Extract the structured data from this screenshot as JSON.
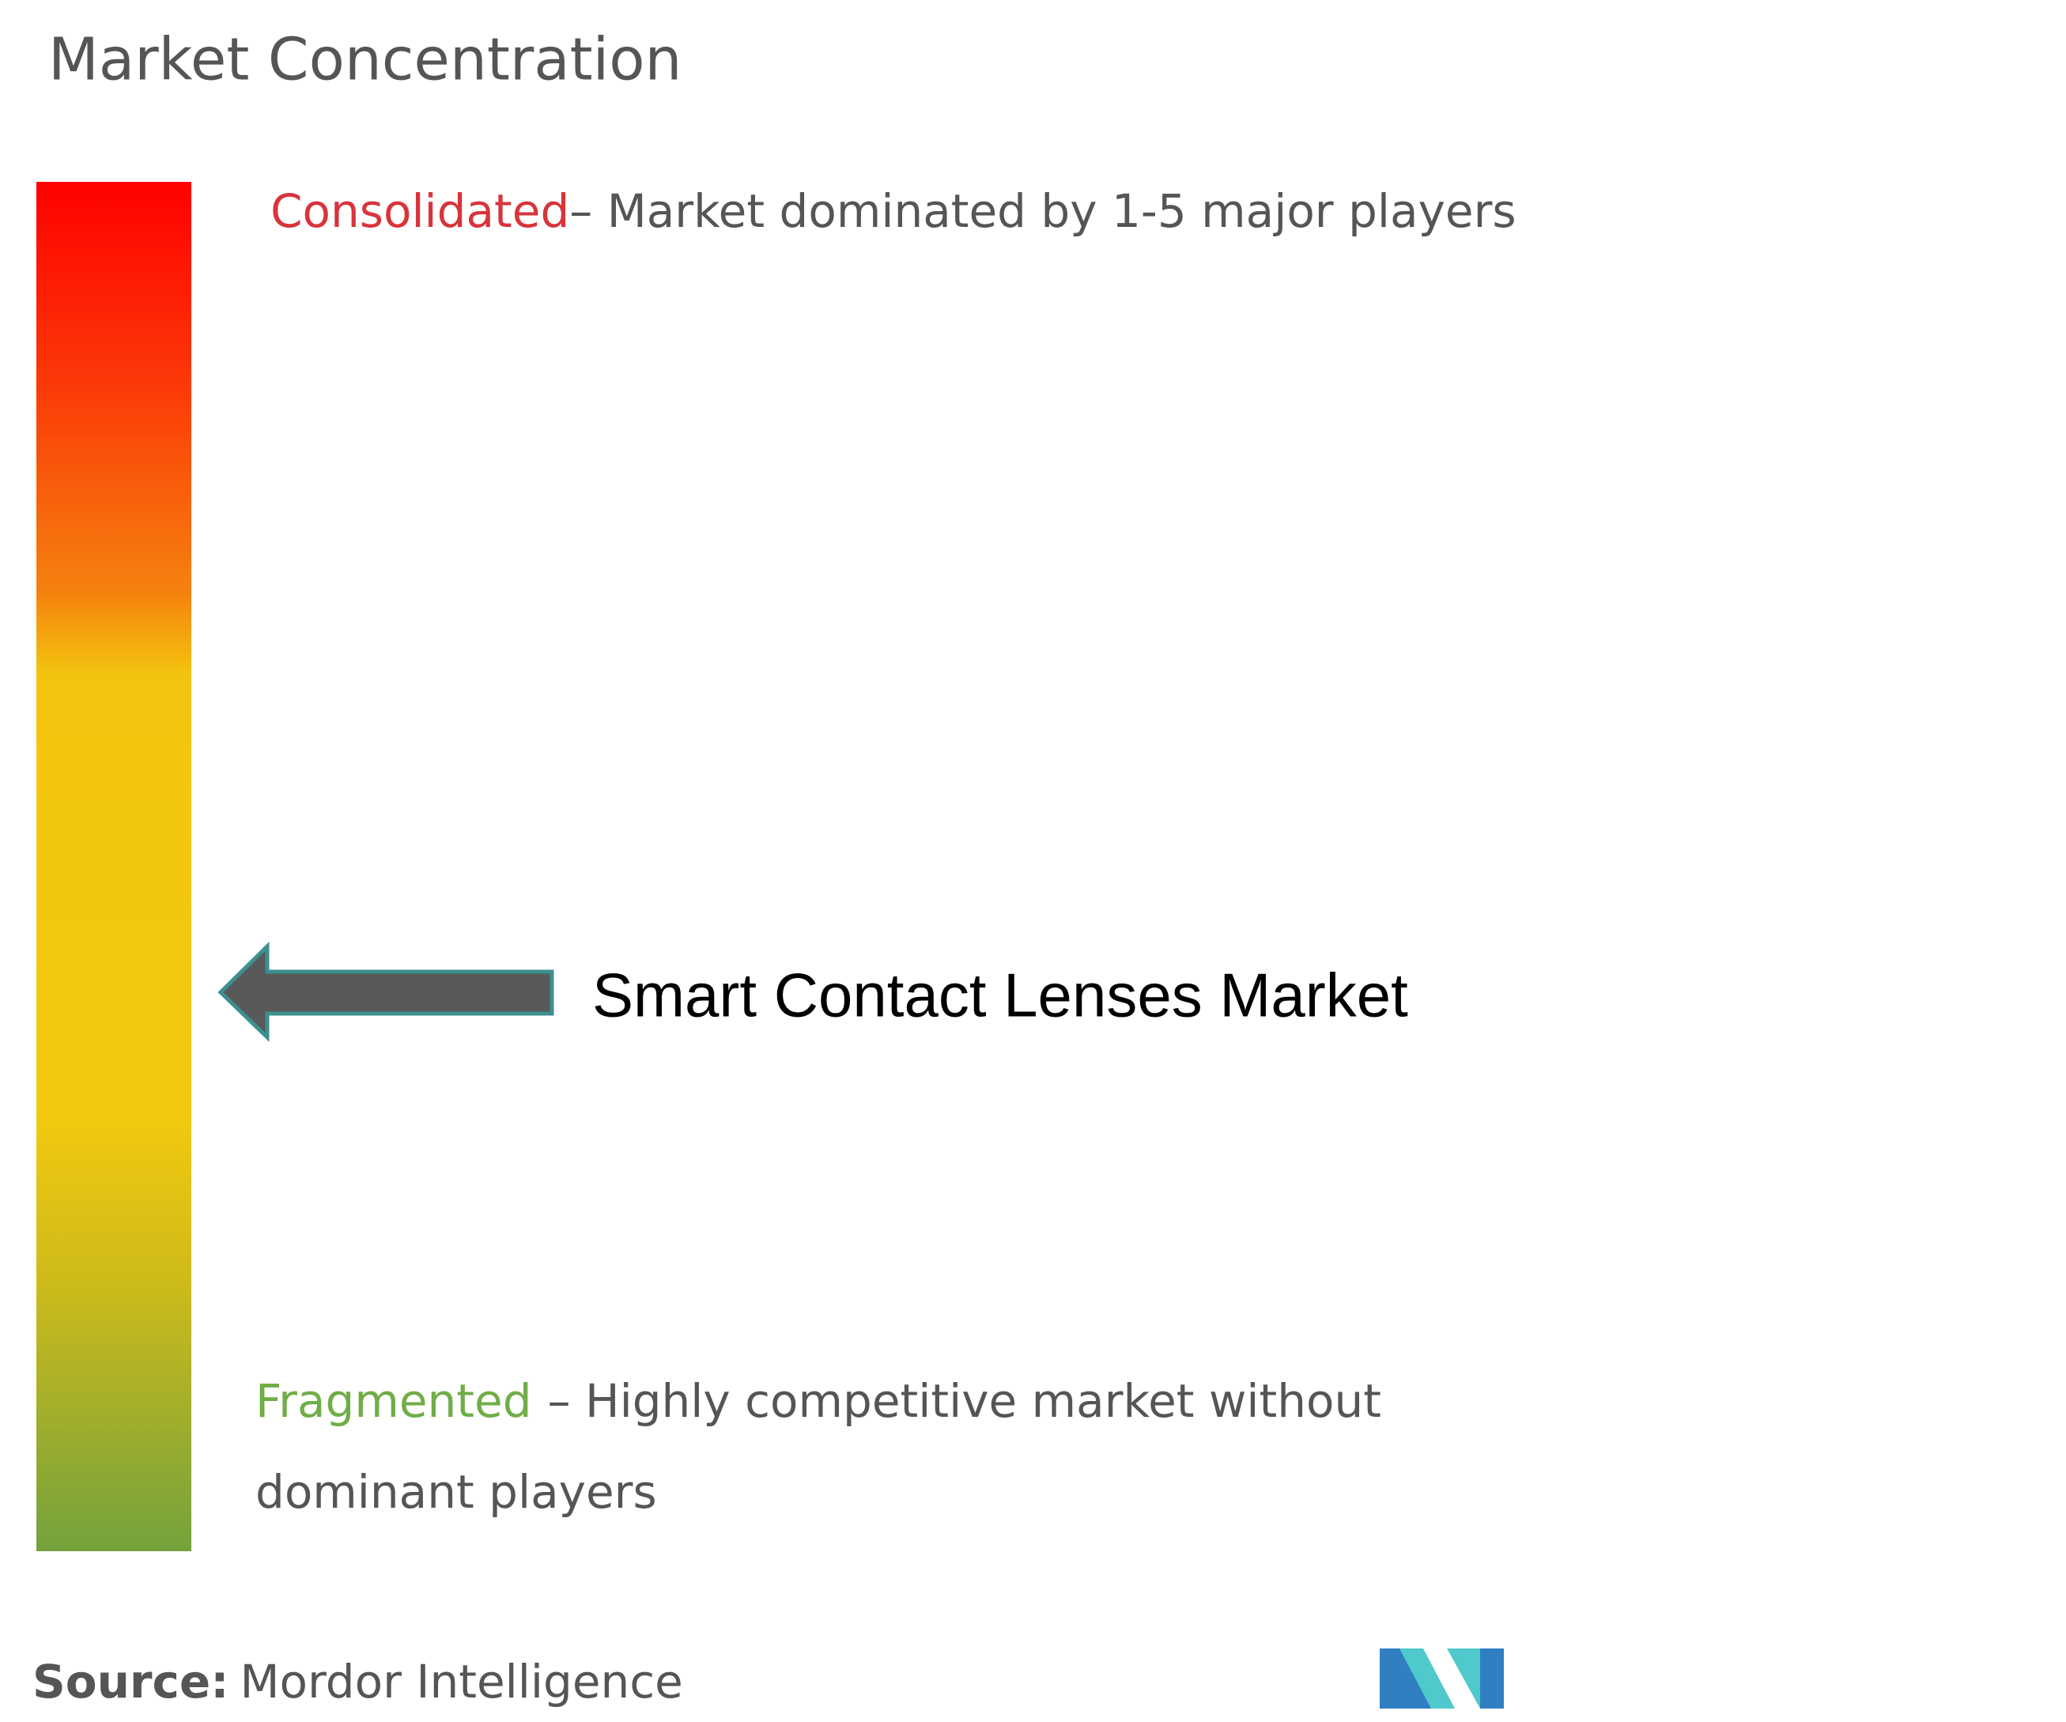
{
  "title": "Market Concentration",
  "consolidated": {
    "label": "Consolidated",
    "description": "– Market dominated by 1-5 major players"
  },
  "fragmented": {
    "label": "Fragmented",
    "description_lines": [
      "– Highly competitive market without",
      "dominant players"
    ]
  },
  "market": "Smart Contact Lenses Market",
  "source": {
    "label": "Source:",
    "text": "Mordor Intelligence"
  }
}
